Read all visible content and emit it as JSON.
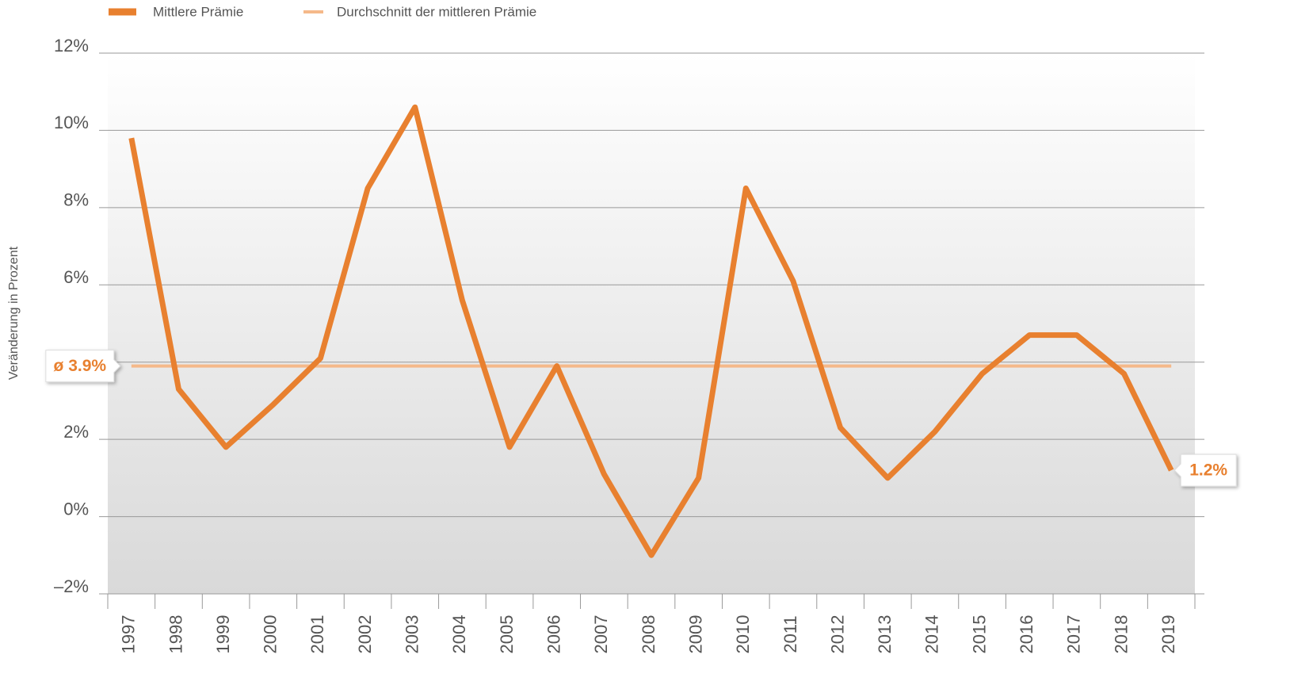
{
  "chart_data": {
    "type": "line",
    "y_axis_label": "Veränderung in Prozent",
    "categories": [
      "1997",
      "1998",
      "1999",
      "2000",
      "2001",
      "2002",
      "2003",
      "2004",
      "2005",
      "2006",
      "2007",
      "2008",
      "2009",
      "2010",
      "2011",
      "2012",
      "2013",
      "2014",
      "2015",
      "2016",
      "2017",
      "2018",
      "2019"
    ],
    "series": [
      {
        "name": "Mittlere Prämie",
        "color": "#e8802f",
        "values": [
          9.8,
          3.3,
          1.8,
          2.9,
          4.1,
          8.5,
          10.6,
          5.6,
          1.8,
          3.9,
          1.1,
          -1.0,
          1.0,
          8.5,
          6.1,
          2.3,
          1.0,
          2.2,
          3.7,
          4.7,
          4.7,
          3.7,
          1.2
        ],
        "value_labels": [
          null,
          null,
          null,
          null,
          null,
          null,
          null,
          null,
          null,
          null,
          null,
          null,
          null,
          null,
          null,
          null,
          null,
          null,
          null,
          null,
          null,
          null,
          "1.2%"
        ]
      },
      {
        "name": "Durchschnitt der mittleren Prämie",
        "color": "#f5b98a",
        "values": [
          3.9,
          3.9,
          3.9,
          3.9,
          3.9,
          3.9,
          3.9,
          3.9,
          3.9,
          3.9,
          3.9,
          3.9,
          3.9,
          3.9,
          3.9,
          3.9,
          3.9,
          3.9,
          3.9,
          3.9,
          3.9,
          3.9,
          3.9
        ],
        "value_labels": [
          "ø 3.9%",
          null,
          null,
          null,
          null,
          null,
          null,
          null,
          null,
          null,
          null,
          null,
          null,
          null,
          null,
          null,
          null,
          null,
          null,
          null,
          null,
          null,
          null
        ]
      }
    ],
    "ylim": [
      -2,
      12
    ],
    "yticks": [
      {
        "value": -2,
        "label": "–2%"
      },
      {
        "value": 0,
        "label": "0%"
      },
      {
        "value": 2,
        "label": "2%"
      },
      {
        "value": 4,
        "label": null
      },
      {
        "value": 6,
        "label": "6%"
      },
      {
        "value": 8,
        "label": "8%"
      },
      {
        "value": 10,
        "label": "10%"
      },
      {
        "value": 12,
        "label": "12%"
      }
    ],
    "grid": true
  }
}
